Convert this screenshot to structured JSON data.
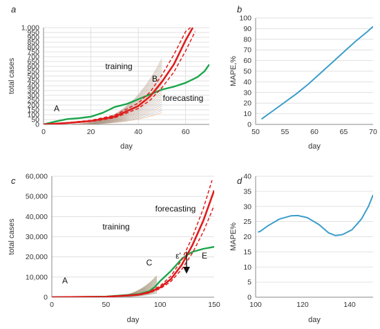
{
  "colors": {
    "green": "#1aa64a",
    "red": "#e01b1b",
    "blue": "#3b9dc9",
    "thin": "#9aa0a6",
    "orange": "#e08a4a",
    "tan": "#b99a63",
    "grid": "#d9d9d9"
  },
  "chart_data": [
    {
      "panel": "a",
      "type": "line",
      "xlabel": "day",
      "ylabel": "total cases",
      "xlim": [
        0,
        70
      ],
      "ylim": [
        0,
        1000
      ],
      "xticks": [
        "0",
        "20",
        "40",
        "60"
      ],
      "yticks": [
        "0",
        "50",
        "100",
        "150",
        "200",
        "250",
        "300",
        "350",
        "400",
        "450",
        "500",
        "550",
        "600",
        "650",
        "700",
        "750",
        "800",
        "850",
        "900",
        "950",
        "1,000"
      ],
      "grid": true,
      "series": [
        {
          "color": "green",
          "x": [
            0,
            5,
            10,
            15,
            20,
            25,
            28,
            30,
            35,
            40,
            45,
            50,
            55,
            60,
            65,
            68,
            70
          ],
          "y": [
            0,
            30,
            55,
            65,
            80,
            120,
            155,
            180,
            210,
            260,
            310,
            360,
            390,
            430,
            490,
            550,
            620
          ]
        },
        {
          "color": "red",
          "x": [
            0,
            10,
            20,
            30,
            40,
            45,
            50,
            55,
            60,
            63
          ],
          "y": [
            0,
            15,
            35,
            80,
            190,
            290,
            440,
            620,
            870,
            1000
          ]
        },
        {
          "color": "red-dash",
          "x": [
            0,
            10,
            20,
            30,
            40,
            45,
            50,
            55,
            60,
            62
          ],
          "y": [
            0,
            18,
            42,
            95,
            220,
            335,
            510,
            720,
            960,
            1000
          ]
        },
        {
          "color": "red-dash",
          "x": [
            0,
            10,
            20,
            30,
            40,
            45,
            50,
            55,
            60,
            64
          ],
          "y": [
            0,
            12,
            30,
            68,
            165,
            250,
            380,
            540,
            760,
            960
          ]
        }
      ],
      "annotations": [
        "training",
        "B",
        "forecasting",
        "A"
      ]
    },
    {
      "panel": "b",
      "type": "line",
      "xlabel": "day",
      "ylabel": "MAPE,%",
      "xlim": [
        50,
        70
      ],
      "ylim": [
        0,
        100
      ],
      "xticks": [
        "50",
        "55",
        "60",
        "65",
        "70"
      ],
      "yticks": [
        "0",
        "10",
        "20",
        "30",
        "40",
        "50",
        "60",
        "70",
        "80",
        "90",
        "100"
      ],
      "series": [
        {
          "color": "blue",
          "x": [
            51,
            53,
            55,
            57,
            59,
            61,
            63,
            65,
            67,
            69,
            70
          ],
          "y": [
            5,
            13,
            21,
            29,
            38,
            48,
            58,
            68,
            78,
            87,
            92
          ]
        }
      ]
    },
    {
      "panel": "c",
      "type": "line",
      "xlabel": "day",
      "ylabel": "total cases",
      "xlim": [
        0,
        150
      ],
      "ylim": [
        0,
        60000
      ],
      "xticks": [
        "0",
        "50",
        "100",
        "150"
      ],
      "yticks": [
        "0",
        "10,000",
        "20,000",
        "30,000",
        "40,000",
        "50,000",
        "60,000"
      ],
      "series": [
        {
          "color": "green",
          "x": [
            0,
            50,
            80,
            90,
            95,
            100,
            110,
            120,
            125,
            130,
            140,
            150
          ],
          "y": [
            0,
            300,
            1500,
            3000,
            5000,
            8000,
            13000,
            19000,
            21000,
            22500,
            24000,
            25000
          ]
        },
        {
          "color": "red",
          "x": [
            0,
            50,
            80,
            90,
            100,
            110,
            120,
            130,
            140,
            150
          ],
          "y": [
            0,
            200,
            1200,
            2400,
            4800,
            9000,
            16000,
            26000,
            38000,
            53000
          ]
        },
        {
          "color": "red-dash",
          "x": [
            0,
            50,
            80,
            90,
            100,
            110,
            120,
            130,
            140,
            148
          ],
          "y": [
            0,
            220,
            1400,
            2800,
            5600,
            10500,
            18500,
            30000,
            44000,
            58000
          ]
        },
        {
          "color": "red-dash",
          "x": [
            0,
            50,
            80,
            90,
            100,
            110,
            120,
            130,
            140,
            150
          ],
          "y": [
            0,
            180,
            1050,
            2100,
            4200,
            7800,
            13800,
            22000,
            32500,
            45500
          ]
        }
      ],
      "annotations": [
        "forecasting",
        "training",
        "ε'",
        "C",
        "E",
        "A"
      ]
    },
    {
      "panel": "d",
      "type": "line",
      "xlabel": "day",
      "ylabel": "MAPE%",
      "xlim": [
        100,
        150
      ],
      "ylim": [
        0,
        40
      ],
      "xticks": [
        "100",
        "120",
        "140"
      ],
      "yticks": [
        "0",
        "5",
        "10",
        "15",
        "20",
        "25",
        "30",
        "35",
        "40"
      ],
      "series": [
        {
          "color": "blue",
          "x": [
            101,
            102,
            105,
            110,
            115,
            118,
            122,
            127,
            131,
            134,
            137,
            141,
            145,
            148,
            150
          ],
          "y": [
            21.5,
            21.8,
            23.5,
            25.8,
            26.9,
            27.0,
            26.3,
            24.0,
            21.3,
            20.4,
            20.7,
            22.3,
            25.8,
            30.0,
            33.8
          ]
        }
      ]
    }
  ]
}
